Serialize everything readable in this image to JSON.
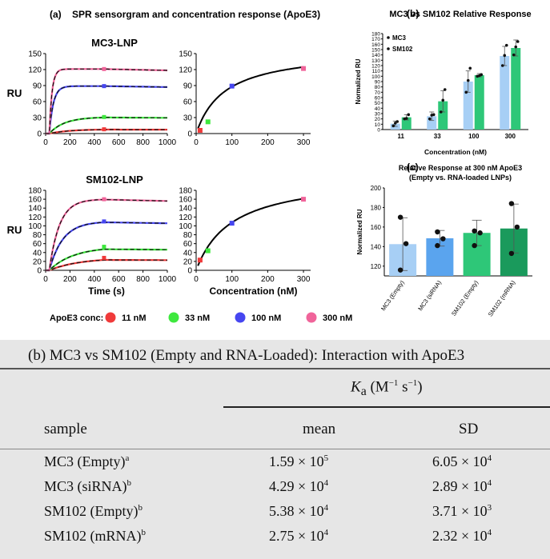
{
  "figure": {
    "panel_a_label": "(a)",
    "panel_a_title": "SPR sensorgram and concentration response (ApoE3)",
    "panel_b_label": "(b)",
    "panel_c_label": "(c)",
    "legend_label": "ApoE3 conc:",
    "legend_items": [
      "11 nM",
      "33 nM",
      "100 nM",
      "300 nM"
    ],
    "legend_colors": [
      "#f03a3a",
      "#3ee83e",
      "#4646f0",
      "#f0649a"
    ]
  },
  "chart_data": [
    {
      "id": "mc3_sensorgram",
      "type": "line",
      "title": "MC3-LNP",
      "xlabel": "",
      "ylabel": "RU",
      "xlim": [
        0,
        1000
      ],
      "ylim": [
        0,
        150
      ],
      "xticks": [
        0,
        200,
        400,
        600,
        800,
        1000
      ],
      "yticks": [
        0,
        30,
        60,
        90,
        120,
        150
      ],
      "series": [
        {
          "conc_nM": 11,
          "color": "#f03a3a",
          "plateau": 8,
          "k": 0.006
        },
        {
          "conc_nM": 33,
          "color": "#3ee83e",
          "plateau": 31,
          "k": 0.008
        },
        {
          "conc_nM": 100,
          "color": "#4646f0",
          "plateau": 89,
          "k": 0.03
        },
        {
          "conc_nM": 300,
          "color": "#f0649a",
          "plateau": 121,
          "k": 0.045
        }
      ]
    },
    {
      "id": "mc3_response",
      "type": "scatter",
      "title": "",
      "xlabel": "",
      "ylabel": "",
      "xlim": [
        0,
        320
      ],
      "ylim": [
        0,
        150
      ],
      "xticks": [
        0,
        100,
        200,
        300
      ],
      "yticks": [
        0,
        30,
        60,
        90,
        120,
        150
      ],
      "x": [
        11,
        33,
        100,
        300
      ],
      "y": [
        6,
        22,
        89,
        122
      ],
      "colors": [
        "#f03a3a",
        "#3ee83e",
        "#4646f0",
        "#f0649a"
      ],
      "fit": {
        "rmax": 158,
        "kd": 80
      }
    },
    {
      "id": "sm102_sensorgram",
      "type": "line",
      "title": "SM102-LNP",
      "xlabel": "Time (s)",
      "ylabel": "RU",
      "xlim": [
        0,
        1000
      ],
      "ylim": [
        0,
        180
      ],
      "xticks": [
        0,
        200,
        400,
        600,
        800,
        1000
      ],
      "yticks": [
        0,
        20,
        40,
        60,
        80,
        100,
        120,
        140,
        160,
        180
      ],
      "series": [
        {
          "conc_nM": 11,
          "color": "#f03a3a",
          "plateau": 28,
          "k": 0.004
        },
        {
          "conc_nM": 33,
          "color": "#3ee83e",
          "plateau": 53,
          "k": 0.005
        },
        {
          "conc_nM": 100,
          "color": "#4646f0",
          "plateau": 110,
          "k": 0.009
        },
        {
          "conc_nM": 300,
          "color": "#f0649a",
          "plateau": 160,
          "k": 0.012
        }
      ]
    },
    {
      "id": "sm102_response",
      "type": "scatter",
      "title": "",
      "xlabel": "Concentration (nM)",
      "ylabel": "",
      "xlim": [
        0,
        320
      ],
      "ylim": [
        0,
        180
      ],
      "xticks": [
        0,
        100,
        200,
        300
      ],
      "yticks": [
        0,
        20,
        40,
        60,
        80,
        100,
        120,
        140,
        160,
        180
      ],
      "x": [
        11,
        33,
        100,
        300
      ],
      "y": [
        23,
        44,
        106,
        160
      ],
      "colors": [
        "#f03a3a",
        "#3ee83e",
        "#4646f0",
        "#f0649a"
      ],
      "fit": {
        "rmax": 215,
        "kd": 100
      }
    },
    {
      "id": "relative_response",
      "type": "bar",
      "title": "MC3 vs SM102 Relative Response",
      "xlabel": "Concentration (nM)",
      "ylabel": "Normalized RU",
      "ylim": [
        0,
        180
      ],
      "yticks": [
        0,
        10,
        20,
        30,
        40,
        50,
        60,
        70,
        80,
        90,
        100,
        110,
        120,
        130,
        140,
        150,
        160,
        170,
        180
      ],
      "categories": [
        "11",
        "33",
        "100",
        "300"
      ],
      "series": [
        {
          "name": "MC3",
          "color": "#a7cff5",
          "values": [
            11,
            25,
            90,
            138
          ],
          "err": [
            5,
            8,
            20,
            18
          ],
          "points": [
            [
              7,
              12,
              15
            ],
            [
              20,
              27,
              28
            ],
            [
              70,
              92,
              115
            ],
            [
              120,
              139,
              158
            ]
          ]
        },
        {
          "name": "SM102",
          "color": "#2ec778",
          "values": [
            23,
            53,
            102,
            153
          ],
          "err": [
            5,
            20,
            3,
            15
          ],
          "points": [
            [
              20,
              21,
              28
            ],
            [
              33,
              55,
              75
            ],
            [
              100,
              101,
              103
            ],
            [
              140,
              155,
              165
            ]
          ]
        }
      ]
    },
    {
      "id": "response_300nM",
      "type": "bar",
      "title_lines": [
        "Relative  Response at 300 nM ApoE3",
        "(Empty vs. RNA-loaded  LNPs)"
      ],
      "xlabel": "",
      "ylabel": "Normalized RU",
      "ylim": [
        110,
        200
      ],
      "yticks": [
        120,
        140,
        160,
        180,
        200
      ],
      "categories": [
        "MC3 (Empty)",
        "MC3 (siRNA)",
        "SM102 (Empty)",
        "SM102 (mRNA)"
      ],
      "values": [
        142.5,
        148.5,
        154,
        158.5
      ],
      "err": [
        27,
        8,
        13,
        25
      ],
      "colors": [
        "#a7cff5",
        "#5aa4ee",
        "#2ec778",
        "#1a9a5c"
      ],
      "points": [
        [
          116,
          143,
          170
        ],
        [
          141,
          148,
          155
        ],
        [
          141,
          154,
          156
        ],
        [
          133,
          160,
          184
        ]
      ]
    }
  ],
  "table": {
    "title": "(b) MC3 vs SM102 (Empty and RNA-Loaded): Interaction with ApoE3",
    "ka_symbol": "K",
    "ka_sub": "a",
    "ka_unit_pre": " (M",
    "ka_unit_exp1": "−1",
    "ka_unit_mid": " s",
    "ka_unit_exp2": "−1",
    "ka_unit_post": ")",
    "col_sample": "sample",
    "col_mean": "mean",
    "col_sd": "SD",
    "rows": [
      {
        "sample": "MC3 (Empty)",
        "note": "a",
        "mean_base": "1.59 × 10",
        "mean_exp": "5",
        "sd_base": "6.05 × 10",
        "sd_exp": "4"
      },
      {
        "sample": "MC3 (siRNA)",
        "note": "b",
        "mean_base": "4.29 × 10",
        "mean_exp": "4",
        "sd_base": "2.89 × 10",
        "sd_exp": "4"
      },
      {
        "sample": "SM102 (Empty)",
        "note": "b",
        "mean_base": "5.38 × 10",
        "mean_exp": "4",
        "sd_base": "3.71 × 10",
        "sd_exp": "3"
      },
      {
        "sample": "SM102 (mRNA)",
        "note": "b",
        "mean_base": "2.75 × 10",
        "mean_exp": "4",
        "sd_base": "2.32 × 10",
        "sd_exp": "4"
      }
    ]
  }
}
